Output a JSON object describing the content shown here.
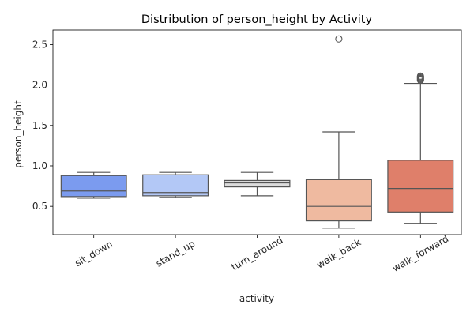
{
  "chart_data": {
    "type": "box",
    "title": "Distribution of person_height by Activity",
    "xlabel": "activity",
    "ylabel": "person_height",
    "ylim": [
      0.15,
      2.68
    ],
    "yticks": [
      0.5,
      1.0,
      1.5,
      2.0,
      2.5
    ],
    "ytick_labels": [
      "0.5",
      "1.0",
      "1.5",
      "2.0",
      "2.5"
    ],
    "grid": false,
    "categories": [
      "sit_down",
      "stand_up",
      "turn_around",
      "walk_back",
      "walk_forward"
    ],
    "boxes": [
      {
        "category": "sit_down",
        "whisker_low": 0.6,
        "q1": 0.62,
        "median": 0.69,
        "q3": 0.88,
        "whisker_high": 0.92,
        "outliers": [],
        "color": "#7b9bef"
      },
      {
        "category": "stand_up",
        "whisker_low": 0.61,
        "q1": 0.63,
        "median": 0.67,
        "q3": 0.89,
        "whisker_high": 0.92,
        "outliers": [],
        "color": "#b3c8f6"
      },
      {
        "category": "turn_around",
        "whisker_low": 0.63,
        "q1": 0.74,
        "median": 0.79,
        "q3": 0.82,
        "whisker_high": 0.92,
        "outliers": [],
        "color": "#dcdcdc"
      },
      {
        "category": "walk_back",
        "whisker_low": 0.23,
        "q1": 0.32,
        "median": 0.5,
        "q3": 0.83,
        "whisker_high": 1.42,
        "outliers": [
          2.57
        ],
        "color": "#efbaa0"
      },
      {
        "category": "walk_forward",
        "whisker_low": 0.29,
        "q1": 0.43,
        "median": 0.72,
        "q3": 1.07,
        "whisker_high": 2.02,
        "outliers": [
          2.06,
          2.07,
          2.08,
          2.09,
          2.1,
          2.11
        ],
        "color": "#df7f6a"
      }
    ]
  }
}
